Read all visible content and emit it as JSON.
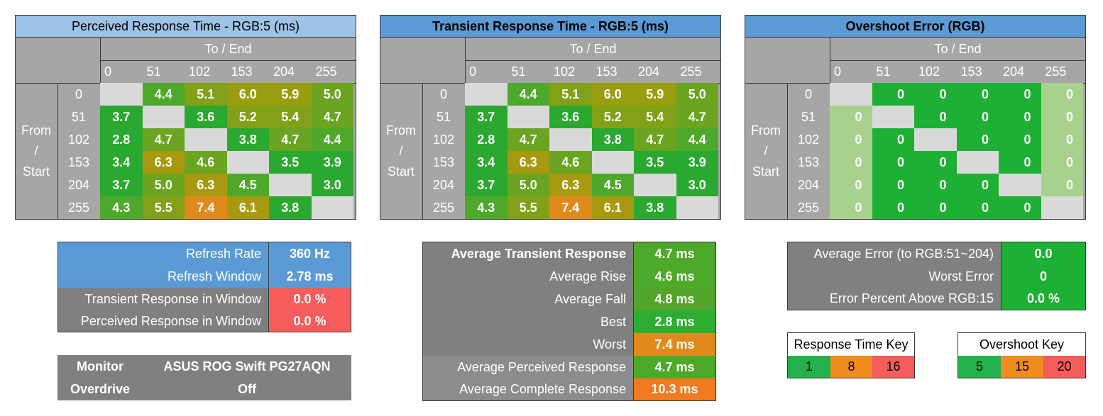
{
  "colors": {
    "panel_gray": "#a6a6a6",
    "diag": "#d9d9d9",
    "title1": "#9dc3e6",
    "title23": "#5b9bd5",
    "red": "#f55c5c",
    "blue": "#5b9bd5",
    "dark_gray": "#808080",
    "mid_gray": "#8c8c8c",
    "key_green": "#22b14c",
    "key_orange": "#f08c1e",
    "key_red": "#f55c5c",
    "green_dark": "#1eb034",
    "green_light": "#a9d18e",
    "orange": "#f07d20"
  },
  "chart_data": [
    {
      "type": "heatmap",
      "title": "Perceived Response Time - RGB:5 (ms)",
      "xlabel": "To / End",
      "ylabel": "From / Start",
      "x": [
        "0",
        "51",
        "102",
        "153",
        "204",
        "255"
      ],
      "y": [
        "0",
        "51",
        "102",
        "153",
        "204",
        "255"
      ],
      "values": [
        [
          null,
          4.4,
          5.1,
          6.0,
          5.9,
          5.0
        ],
        [
          3.7,
          null,
          3.6,
          5.2,
          5.4,
          4.7
        ],
        [
          2.8,
          4.7,
          null,
          3.8,
          4.7,
          4.4
        ],
        [
          3.4,
          6.3,
          4.6,
          null,
          3.5,
          3.9
        ],
        [
          3.7,
          5.0,
          6.3,
          4.5,
          null,
          3.0
        ],
        [
          4.3,
          5.5,
          7.4,
          6.1,
          3.8,
          null
        ]
      ]
    },
    {
      "type": "heatmap",
      "title": "Transient Response Time - RGB:5 (ms)",
      "xlabel": "To / End",
      "ylabel": "From / Start",
      "x": [
        "0",
        "51",
        "102",
        "153",
        "204",
        "255"
      ],
      "y": [
        "0",
        "51",
        "102",
        "153",
        "204",
        "255"
      ],
      "values": [
        [
          null,
          4.4,
          5.1,
          6.0,
          5.9,
          5.0
        ],
        [
          3.7,
          null,
          3.6,
          5.2,
          5.4,
          4.7
        ],
        [
          2.8,
          4.7,
          null,
          3.8,
          4.7,
          4.4
        ],
        [
          3.4,
          6.3,
          4.6,
          null,
          3.5,
          3.9
        ],
        [
          3.7,
          5.0,
          6.3,
          4.5,
          null,
          3.0
        ],
        [
          4.3,
          5.5,
          7.4,
          6.1,
          3.8,
          null
        ]
      ]
    },
    {
      "type": "heatmap",
      "title": "Overshoot Error (RGB)",
      "xlabel": "To / End",
      "ylabel": "From / Start",
      "x": [
        "0",
        "51",
        "102",
        "153",
        "204",
        "255"
      ],
      "y": [
        "0",
        "51",
        "102",
        "153",
        "204",
        "255"
      ],
      "values": [
        [
          null,
          0,
          0,
          0,
          0,
          0
        ],
        [
          0,
          null,
          0,
          0,
          0,
          0
        ],
        [
          0,
          0,
          null,
          0,
          0,
          0
        ],
        [
          0,
          0,
          0,
          null,
          0,
          0
        ],
        [
          0,
          0,
          0,
          0,
          null,
          0
        ],
        [
          0,
          0,
          0,
          0,
          0,
          null
        ]
      ]
    }
  ],
  "to_end_label": "To / End",
  "from_label": [
    "From",
    "/",
    "Start"
  ],
  "refresh_table": {
    "rows": [
      {
        "label": "Refresh Rate",
        "value": "360 Hz"
      },
      {
        "label": "Refresh Window",
        "value": "2.78 ms"
      },
      {
        "label": "Transient Response in Window",
        "value": "0.0 %"
      },
      {
        "label": "Perceived Response in Window",
        "value": "0.0 %"
      }
    ]
  },
  "monitor_table": {
    "monitor_label": "Monitor",
    "monitor_value": "ASUS ROG Swift PG27AQN",
    "overdrive_label": "Overdrive",
    "overdrive_value": "Off"
  },
  "response_table": {
    "rows": [
      {
        "label": "Average Transient Response",
        "value": "4.7 ms"
      },
      {
        "label": "Average Rise",
        "value": "4.6 ms"
      },
      {
        "label": "Average Fall",
        "value": "4.8 ms"
      },
      {
        "label": "Best",
        "value": "2.8 ms"
      },
      {
        "label": "Worst",
        "value": "7.4 ms"
      },
      {
        "label": "Average Perceived Response",
        "value": "4.7 ms"
      },
      {
        "label": "Average Complete Response",
        "value": "10.3 ms"
      }
    ]
  },
  "error_table": {
    "rows": [
      {
        "label": "Average Error (to RGB:51~204)",
        "value": "0.0"
      },
      {
        "label": "Worst Error",
        "value": "0"
      },
      {
        "label": "Error Percent Above RGB:15",
        "value": "0.0 %"
      }
    ]
  },
  "response_key": {
    "title": "Response Time Key",
    "values": [
      "1",
      "8",
      "16"
    ]
  },
  "overshoot_key": {
    "title": "Overshoot Key",
    "values": [
      "5",
      "15",
      "20"
    ]
  }
}
